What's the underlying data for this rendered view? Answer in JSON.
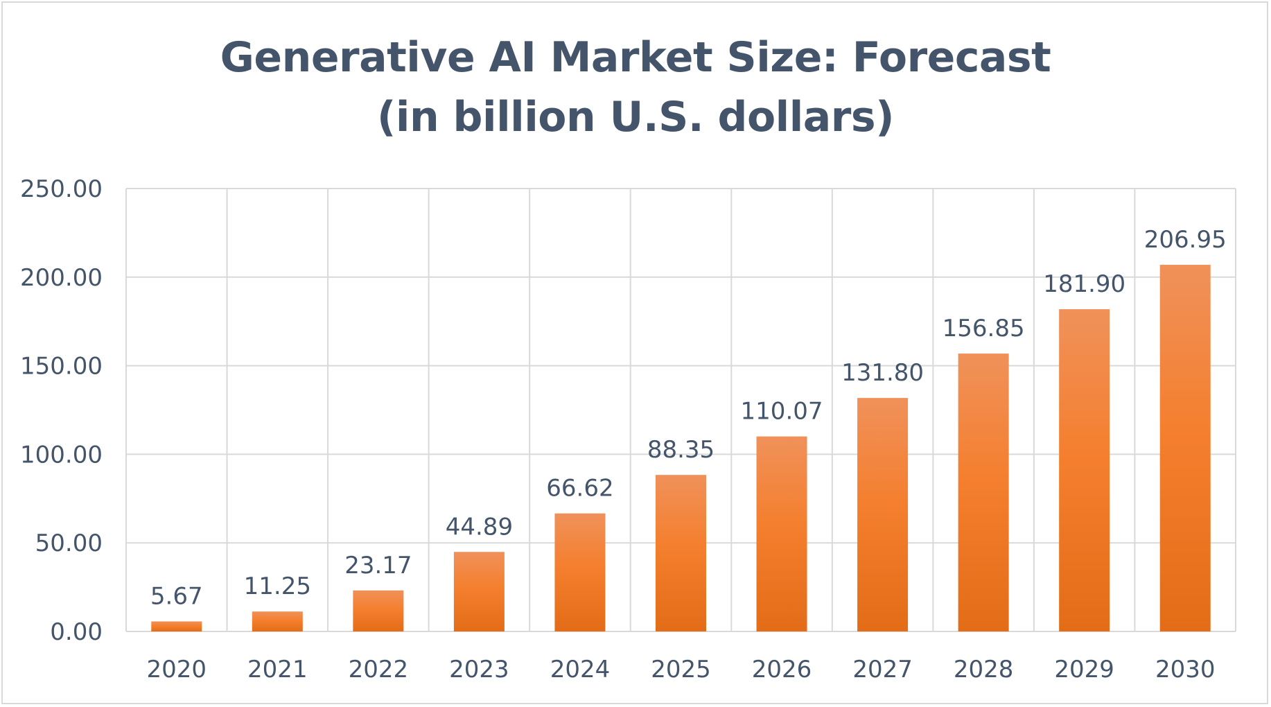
{
  "chart_data": {
    "type": "bar",
    "title_lines": [
      "Generative AI Market Size: Forecast",
      "(in billion U.S. dollars)"
    ],
    "categories": [
      "2020",
      "2021",
      "2022",
      "2023",
      "2024",
      "2025",
      "2026",
      "2027",
      "2028",
      "2029",
      "2030"
    ],
    "values": [
      5.67,
      11.25,
      23.17,
      44.89,
      66.62,
      88.35,
      110.07,
      131.8,
      156.85,
      181.9,
      206.95
    ],
    "value_labels": [
      "5.67",
      "11.25",
      "23.17",
      "44.89",
      "66.62",
      "88.35",
      "110.07",
      "131.80",
      "156.85",
      "181.90",
      "206.95"
    ],
    "ylim": [
      0,
      250
    ],
    "yticks": [
      0,
      50,
      100,
      150,
      200,
      250
    ],
    "ytick_labels": [
      "0.00",
      "50.00",
      "100.00",
      "150.00",
      "200.00",
      "250.00"
    ],
    "xlabel": "",
    "ylabel": "",
    "grid": true,
    "legend": "none",
    "colors": {
      "bar_top": "#f0915a",
      "bar_mid": "#f47f2e",
      "bar_bottom": "#e36c17",
      "text": "#44546a",
      "grid": "#d9d9d9"
    }
  }
}
